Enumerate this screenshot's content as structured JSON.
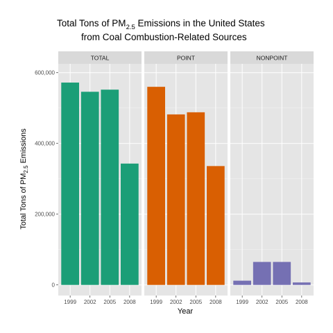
{
  "chart_data": {
    "type": "bar",
    "title": {
      "line1_prefix": "Total Tons of PM",
      "line1_sub": "2.5",
      "line1_suffix": " Emissions in the United States",
      "line2": "from Coal Combustion-Related Sources"
    },
    "xlabel": "Year",
    "ylabel": {
      "prefix": "Total Tons of PM",
      "sub": "2.5",
      "suffix": " Emissions"
    },
    "categories": [
      "1999",
      "2002",
      "2005",
      "2008"
    ],
    "ylim": [
      -30000,
      625000
    ],
    "yticks": [
      0,
      200000,
      400000,
      600000
    ],
    "ytick_labels": [
      "0",
      "200,000",
      "400,000",
      "600,000"
    ],
    "grid": true,
    "legend": "none",
    "panels": [
      {
        "name": "TOTAL",
        "color": "#1b9e77",
        "values": [
          572000,
          546000,
          552000,
          343000
        ]
      },
      {
        "name": "POINT",
        "color": "#d95f02",
        "values": [
          560000,
          482000,
          488000,
          336000
        ]
      },
      {
        "name": "NONPOINT",
        "color": "#7570b3",
        "values": [
          12000,
          65000,
          65000,
          7000
        ]
      }
    ]
  },
  "colors": {
    "panel_background": "#e5e5e5",
    "strip_background": "#d9d9d9",
    "grid_major": "#ffffff",
    "grid_minor": "#f2f2f2"
  }
}
